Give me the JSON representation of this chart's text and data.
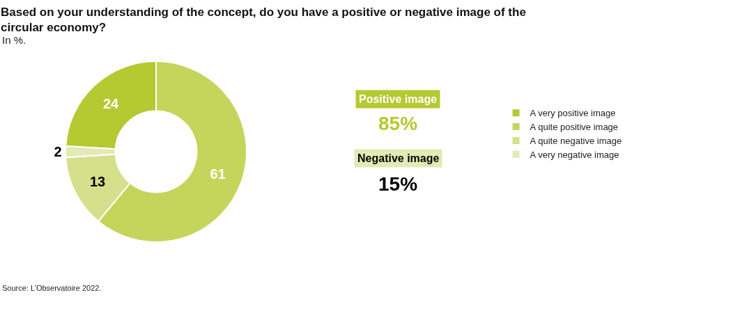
{
  "chart_data": {
    "type": "donut",
    "title": "Based on your understanding of the concept, do you have a positive or negative image of the circular economy?",
    "subtitle": "In %.",
    "categories": [
      "A very positive image",
      "A quite positive image",
      "A quite negative image",
      "A very negative image"
    ],
    "values": [
      24,
      61,
      13,
      2
    ],
    "colors": [
      "#b5c931",
      "#c5d55b",
      "#d4e08b",
      "#e2eab5"
    ],
    "data_labels": true,
    "legend": "right",
    "annotations": [
      "Positive image",
      "85%",
      "Negative image",
      "15%",
      "Source: L’Observatoire 2022."
    ]
  }
}
